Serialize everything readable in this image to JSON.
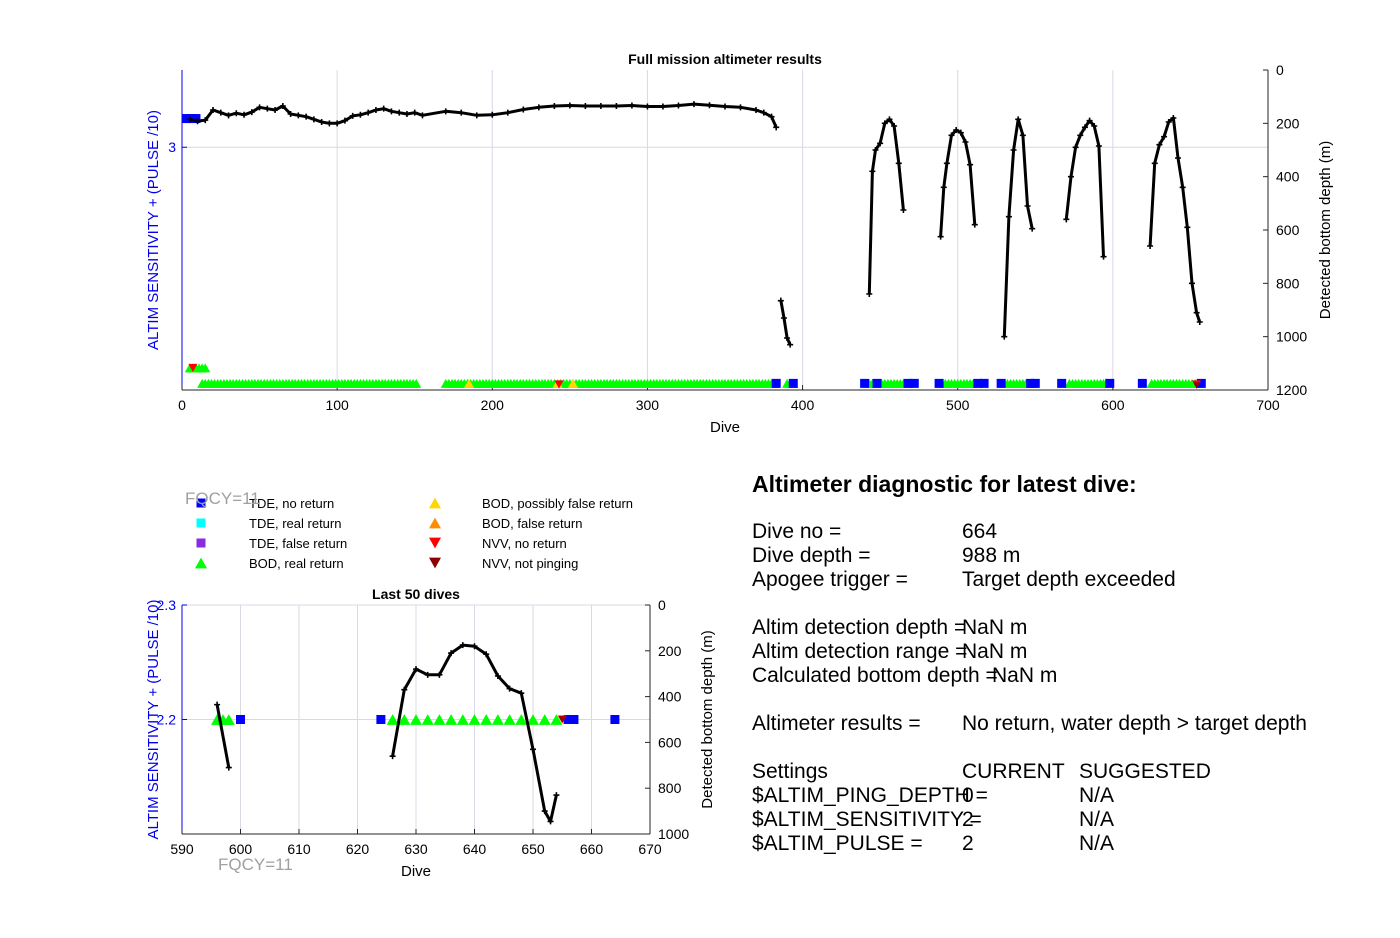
{
  "colors": {
    "left_axis": "#0000ee",
    "grid": "#d8d8e6",
    "fqcy": "#a0a0a0",
    "line": "#000000",
    "tde_no_return": "#0000ff",
    "tde_real_return": "#00ffff",
    "tde_false_return": "#8a2be2",
    "bod_real_return": "#00ff00",
    "bod_possibly_false": "#ffd700",
    "bod_false": "#ff8c00",
    "nvv_no_return": "#ff0000",
    "nvv_not_pinging": "#8b0000"
  },
  "chart_data": [
    {
      "id": "full_mission",
      "type": "line",
      "title": "Full mission altimeter results",
      "xlabel": "Dive",
      "ylabel_left": "ALTIM SENSITIVITY + (PULSE /10)",
      "ylabel_right": "Detected bottom depth (m)",
      "xlim": [
        0,
        700
      ],
      "xticks": [
        0,
        100,
        200,
        300,
        400,
        500,
        600,
        700
      ],
      "ylim_left": [
        1.9,
        3.35
      ],
      "yticks_left": [
        3
      ],
      "ylim_right_reversed": [
        0,
        1200
      ],
      "yticks_right": [
        0,
        200,
        400,
        600,
        800,
        1000,
        1200
      ],
      "grid": true,
      "series": [
        {
          "name": "bottom depth",
          "segments": [
            {
              "x": [
                5,
                10,
                15,
                20,
                25,
                30,
                35,
                40,
                45,
                50,
                55,
                60,
                65,
                70,
                75,
                80,
                85,
                90,
                95,
                100,
                105,
                110,
                115,
                120,
                125,
                130,
                135,
                140,
                145,
                150,
                155,
                170,
                180,
                190,
                200,
                210,
                220,
                230,
                240,
                250,
                260,
                270,
                280,
                290,
                300,
                310,
                320,
                330,
                340,
                350,
                360,
                370,
                375,
                380,
                383
              ],
              "y": [
                185,
                192,
                188,
                150,
                160,
                170,
                162,
                168,
                158,
                140,
                145,
                150,
                135,
                165,
                170,
                175,
                185,
                195,
                200,
                200,
                190,
                172,
                168,
                160,
                150,
                145,
                155,
                160,
                165,
                160,
                170,
                155,
                160,
                170,
                168,
                160,
                148,
                140,
                135,
                133,
                135,
                135,
                135,
                133,
                137,
                137,
                133,
                128,
                132,
                137,
                140,
                150,
                160,
                175,
                215
              ]
            },
            {
              "x": [
                386,
                388,
                390,
                392
              ],
              "y": [
                865,
                930,
                1005,
                1030
              ]
            },
            {
              "x": [
                443,
                445,
                447,
                450,
                453,
                456,
                459,
                462,
                465
              ],
              "y": [
                840,
                380,
                300,
                275,
                200,
                185,
                210,
                350,
                525
              ]
            },
            {
              "x": [
                489,
                491,
                493,
                496,
                499,
                502,
                505,
                508,
                511
              ],
              "y": [
                625,
                440,
                350,
                245,
                225,
                235,
                270,
                355,
                580
              ]
            },
            {
              "x": [
                530,
                533,
                536,
                539,
                542,
                545,
                548
              ],
              "y": [
                1000,
                550,
                300,
                185,
                245,
                510,
                595
              ]
            },
            {
              "x": [
                570,
                573,
                576,
                579,
                582,
                585,
                588,
                591,
                594
              ],
              "y": [
                560,
                400,
                290,
                245,
                215,
                190,
                210,
                285,
                700
              ]
            },
            {
              "x": [
                624,
                627,
                630,
                633,
                636,
                639,
                642,
                645,
                648,
                651,
                654,
                656
              ],
              "y": [
                660,
                350,
                280,
                250,
                195,
                180,
                330,
                440,
                590,
                800,
                910,
                945
              ]
            }
          ]
        }
      ],
      "markers": {
        "tde_no_return": [
          [
            3,
            3.13
          ],
          [
            6,
            3.13
          ],
          [
            9,
            3.13
          ],
          [
            383,
            1.93
          ],
          [
            394,
            1.93
          ],
          [
            440,
            1.93
          ],
          [
            448,
            1.93
          ],
          [
            468,
            1.93
          ],
          [
            472,
            1.93
          ],
          [
            488,
            1.93
          ],
          [
            513,
            1.93
          ],
          [
            517,
            1.93
          ],
          [
            528,
            1.93
          ],
          [
            547,
            1.93
          ],
          [
            550,
            1.93
          ],
          [
            567,
            1.93
          ],
          [
            598,
            1.93
          ],
          [
            619,
            1.93
          ],
          [
            657,
            1.93
          ]
        ],
        "bod_real_return_bands": [
          [
            5,
            15,
            2.0
          ],
          [
            13,
            152,
            1.93
          ],
          [
            170,
            382,
            1.93
          ],
          [
            390,
            394,
            1.93
          ],
          [
            443,
            465,
            1.93
          ],
          [
            490,
            511,
            1.93
          ],
          [
            530,
            548,
            1.93
          ],
          [
            572,
            594,
            1.93
          ],
          [
            625,
            655,
            1.93
          ]
        ],
        "bod_possibly_false": [
          [
            185,
            1.93
          ],
          [
            242,
            1.93
          ],
          [
            252,
            1.93
          ]
        ],
        "nvv_no_return": [
          [
            7,
            2.0
          ],
          [
            243,
            1.925
          ],
          [
            654,
            1.925
          ]
        ],
        "nvv_not_pinging": [
          [
            654,
            1.92
          ]
        ]
      }
    },
    {
      "id": "last_50",
      "type": "line",
      "title": "Last 50 dives",
      "xlabel": "Dive",
      "ylabel_left": "ALTIM SENSITIVITY + (PULSE /10)",
      "ylabel_right": "Detected bottom depth (m)",
      "xlim": [
        590,
        670
      ],
      "xticks": [
        590,
        600,
        610,
        620,
        630,
        640,
        650,
        660,
        670
      ],
      "ylim_left": [
        2.1,
        2.3
      ],
      "yticks_left": [
        2.2,
        2.3
      ],
      "ylim_right_reversed": [
        0,
        1000
      ],
      "yticks_right": [
        0,
        200,
        400,
        600,
        800,
        1000
      ],
      "grid": true,
      "series": [
        {
          "name": "bottom depth",
          "segments": [
            {
              "x": [
                596,
                598
              ],
              "y": [
                435,
                710
              ]
            },
            {
              "x": [
                626,
                628,
                630,
                632,
                634,
                636,
                638,
                640,
                642,
                644,
                646,
                648,
                650,
                652,
                653,
                654
              ],
              "y": [
                660,
                370,
                280,
                305,
                305,
                210,
                175,
                180,
                215,
                310,
                365,
                385,
                630,
                900,
                945,
                830
              ]
            }
          ]
        }
      ],
      "markers": {
        "tde_no_return": [
          [
            600,
            2.2
          ],
          [
            624,
            2.2
          ],
          [
            656,
            2.2
          ],
          [
            657,
            2.2
          ],
          [
            664,
            2.2
          ]
        ],
        "bod_real_return": [
          [
            596,
            2.2
          ],
          [
            597,
            2.2
          ],
          [
            598,
            2.2
          ],
          [
            626,
            2.2
          ],
          [
            628,
            2.2
          ],
          [
            630,
            2.2
          ],
          [
            632,
            2.2
          ],
          [
            634,
            2.2
          ],
          [
            636,
            2.2
          ],
          [
            638,
            2.2
          ],
          [
            640,
            2.2
          ],
          [
            642,
            2.2
          ],
          [
            644,
            2.2
          ],
          [
            646,
            2.2
          ],
          [
            648,
            2.2
          ],
          [
            650,
            2.2
          ],
          [
            652,
            2.2
          ],
          [
            654,
            2.2
          ]
        ],
        "nvv_no_return": [
          [
            655,
            2.2
          ]
        ],
        "nvv_not_pinging": [
          [
            655,
            2.2
          ]
        ]
      }
    }
  ],
  "legend": {
    "items": [
      {
        "key": "tde_no_return",
        "label": "TDE, no return",
        "marker": "square"
      },
      {
        "key": "tde_real_return",
        "label": "TDE, real return",
        "marker": "square"
      },
      {
        "key": "tde_false_return",
        "label": "TDE, false return",
        "marker": "square"
      },
      {
        "key": "bod_real_return",
        "label": "BOD, real return",
        "marker": "triangle-up"
      },
      {
        "key": "bod_possibly_false",
        "label": "BOD, possibly false return",
        "marker": "triangle-up"
      },
      {
        "key": "bod_false",
        "label": "BOD, false return",
        "marker": "triangle-up"
      },
      {
        "key": "nvv_no_return",
        "label": "NVV, no return",
        "marker": "triangle-down"
      },
      {
        "key": "nvv_not_pinging",
        "label": "NVV, not pinging",
        "marker": "triangle-down"
      }
    ]
  },
  "fqcy_label": "FQCY=11",
  "diagnostic": {
    "title": "Altimeter diagnostic for latest dive:",
    "dive_no_label": "Dive no =",
    "dive_no_value": "664",
    "dive_depth_label": "Dive depth =",
    "dive_depth_value": "988 m",
    "apogee_label": "Apogee trigger =",
    "apogee_value": "Target depth exceeded",
    "det_depth_label": "Altim detection depth =",
    "det_depth_value": "NaN m",
    "det_range_label": "Altim detection range =",
    "det_range_value": "NaN m",
    "calc_bottom_label": "Calculated bottom depth =",
    "calc_bottom_value": "NaN m",
    "results_label": "Altimeter results =",
    "results_value": "No return, water depth > target depth",
    "settings_label": "Settings",
    "current_header": "CURRENT",
    "suggested_header": "SUGGESTED",
    "ping_depth_label": "$ALTIM_PING_DEPTH =",
    "ping_depth_current": "0",
    "ping_depth_suggested": "N/A",
    "sensitivity_label": "$ALTIM_SENSITIVITY =",
    "sensitivity_current": "2",
    "sensitivity_suggested": "N/A",
    "pulse_label": "$ALTIM_PULSE =",
    "pulse_current": "2",
    "pulse_suggested": "N/A"
  }
}
